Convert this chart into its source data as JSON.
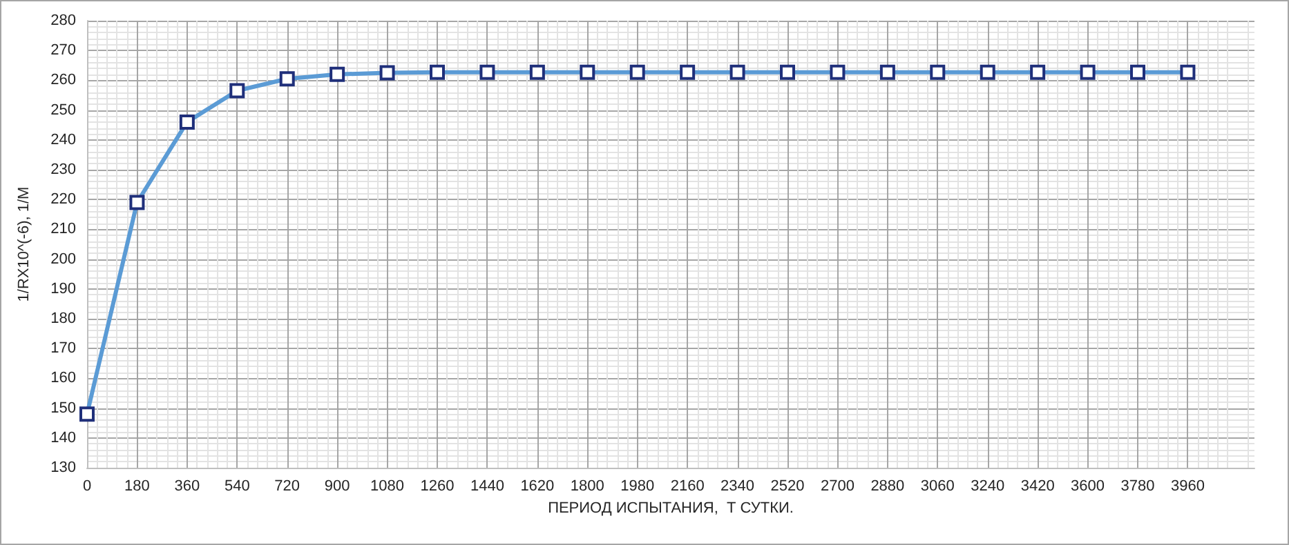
{
  "chart_data": {
    "type": "line",
    "xlabel": "ПЕРИОД ИСПЫТАНИЯ,  Т СУТКИ.",
    "ylabel": "1/RX10^(-6), 1/M",
    "x": [
      0,
      180,
      360,
      540,
      720,
      900,
      1080,
      1260,
      1440,
      1620,
      1800,
      1980,
      2160,
      2340,
      2520,
      2700,
      2880,
      3060,
      3240,
      3420,
      3600,
      3780,
      3960
    ],
    "series": [
      {
        "color": "#5b9bd5",
        "values": [
          148,
          219,
          246,
          256.5,
          260.5,
          262,
          262.5,
          262.7,
          262.7,
          262.7,
          262.7,
          262.7,
          262.7,
          262.7,
          262.7,
          262.7,
          262.7,
          262.7,
          262.7,
          262.7,
          262.7,
          262.7,
          262.7
        ]
      }
    ],
    "xlim": [
      0,
      4200
    ],
    "xticks": [
      0,
      180,
      360,
      540,
      720,
      900,
      1080,
      1260,
      1440,
      1620,
      1800,
      1980,
      2160,
      2340,
      2520,
      2700,
      2880,
      3060,
      3240,
      3420,
      3600,
      3780,
      3960
    ],
    "ylim": [
      130,
      280
    ],
    "yticks": [
      130,
      140,
      150,
      160,
      170,
      180,
      190,
      200,
      210,
      220,
      230,
      240,
      250,
      260,
      270,
      280
    ],
    "grid": true,
    "marker": "square",
    "line_style": "solid"
  }
}
